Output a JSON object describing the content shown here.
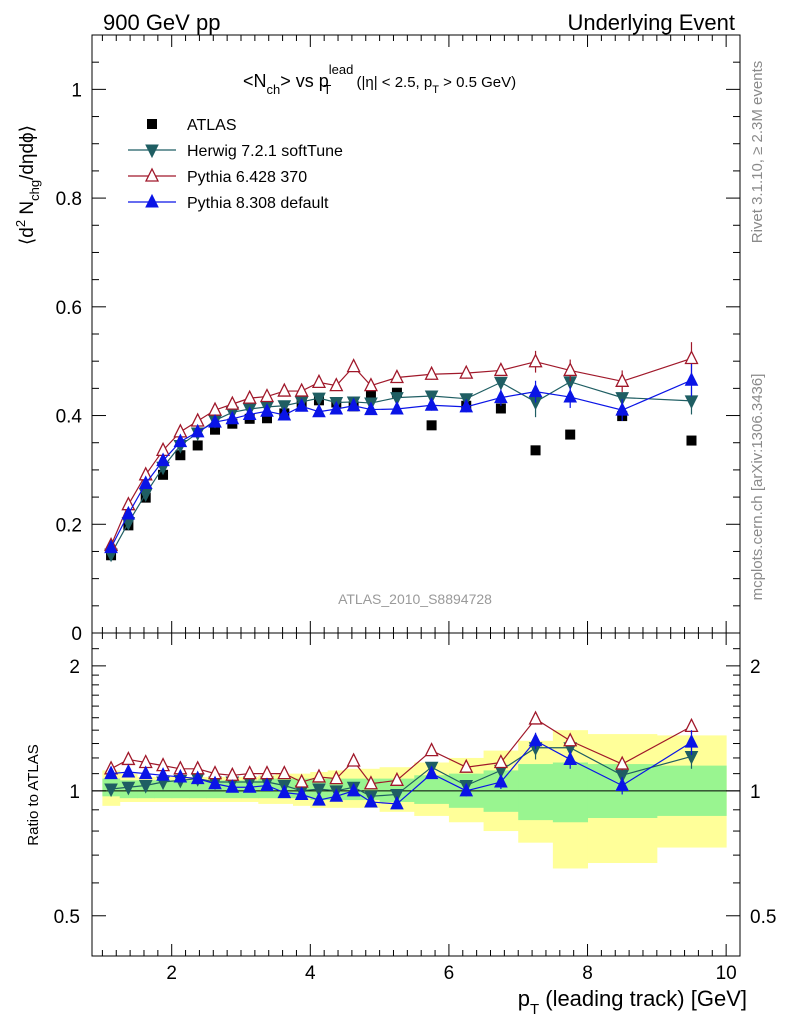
{
  "header": {
    "left": "900 GeV pp",
    "right": "Underlying Event"
  },
  "side_labels": {
    "top": "Rivet 3.1.10, ≥ 2.3M events",
    "bottom": "mcplots.cern.ch [arXiv:1306.3436]"
  },
  "watermark": "ATLAS_2010_S8894728",
  "colors": {
    "atlas": "#000000",
    "herwig": "#1f5e63",
    "pythia6": "#a0182a",
    "pythia8": "#0a14e6",
    "band_inner": "#99f590",
    "band_outer": "#ffff99"
  },
  "chart_data": [
    {
      "type": "scatter",
      "panel": "main",
      "title_parts": {
        "a": "<N",
        "a_sub": "ch",
        "b": "> vs p",
        "b_sup": "lead",
        "b_sub": "T",
        "c": " (|η| < 2.5, p",
        "c_sub": "T",
        "d": " > 0.5 GeV)"
      },
      "ylabel_parts": {
        "a": "⟨d",
        "a_sup": "2",
        "b": " N",
        "b_sub": "chg",
        "c": "/dηdϕ⟩"
      },
      "xlim": [
        0.85,
        10.2
      ],
      "ylim": [
        0,
        1.1
      ],
      "yticks": [
        0,
        0.2,
        0.4,
        0.6,
        0.8,
        1
      ],
      "ytick_labels": [
        "0",
        "0.2",
        "0.4",
        "0.6",
        "0.8",
        "1"
      ],
      "legend_position": "top-left",
      "x": [
        1.125,
        1.375,
        1.625,
        1.875,
        2.125,
        2.375,
        2.625,
        2.875,
        3.125,
        3.375,
        3.625,
        3.875,
        4.125,
        4.375,
        4.625,
        4.875,
        5.25,
        5.75,
        6.25,
        6.75,
        7.25,
        7.75,
        8.5,
        9.5
      ],
      "series": [
        {
          "name": "ATLAS",
          "marker": "square",
          "values": [
            0.143,
            0.198,
            0.249,
            0.291,
            0.327,
            0.345,
            0.374,
            0.385,
            0.394,
            0.395,
            0.404,
            0.424,
            0.428,
            0.424,
            0.417,
            0.437,
            0.442,
            0.382,
            0.418,
            0.413,
            0.336,
            0.365,
            0.399,
            0.354
          ]
        },
        {
          "name": "Herwig 7.2.1 softTune",
          "marker": "triangle-down",
          "values": [
            0.145,
            0.203,
            0.256,
            0.305,
            0.345,
            0.368,
            0.391,
            0.406,
            0.412,
            0.416,
            0.418,
            0.425,
            0.432,
            0.424,
            0.425,
            0.423,
            0.433,
            0.436,
            0.431,
            0.461,
            0.425,
            0.462,
            0.433,
            0.427
          ],
          "errors": [
            0,
            0,
            0,
            0,
            0,
            0,
            0,
            0,
            0,
            0,
            0,
            0,
            0,
            0,
            0,
            0,
            0,
            0,
            0,
            0,
            0.028,
            0.01,
            0,
            0.025
          ]
        },
        {
          "name": "Pythia 6.428 370",
          "marker": "triangle-up-open",
          "values": [
            0.161,
            0.236,
            0.291,
            0.336,
            0.37,
            0.39,
            0.41,
            0.421,
            0.432,
            0.435,
            0.445,
            0.445,
            0.461,
            0.455,
            0.49,
            0.455,
            0.47,
            0.476,
            0.478,
            0.483,
            0.499,
            0.483,
            0.463,
            0.505
          ],
          "errors": [
            0,
            0,
            0,
            0,
            0,
            0,
            0,
            0,
            0,
            0,
            0,
            0,
            0,
            0,
            0,
            0,
            0,
            0.01,
            0.01,
            0.01,
            0.02,
            0.02,
            0.02,
            0.03
          ]
        },
        {
          "name": "Pythia 8.308 default",
          "marker": "triangle-up",
          "values": [
            0.157,
            0.219,
            0.275,
            0.317,
            0.352,
            0.37,
            0.388,
            0.394,
            0.402,
            0.408,
            0.401,
            0.417,
            0.407,
            0.412,
            0.418,
            0.411,
            0.412,
            0.419,
            0.416,
            0.433,
            0.444,
            0.434,
            0.41,
            0.465
          ],
          "errors": [
            0,
            0,
            0,
            0,
            0,
            0,
            0,
            0,
            0,
            0,
            0,
            0,
            0,
            0,
            0,
            0,
            0,
            0.01,
            0.01,
            0.015,
            0.02,
            0.02,
            0.02,
            0.03
          ]
        }
      ]
    },
    {
      "type": "scatter",
      "panel": "ratio",
      "ylabel": "Ratio to ATLAS",
      "xlabel_parts": {
        "a": "p",
        "a_sub": "T",
        "b": " (leading track) [GeV]"
      },
      "xlim": [
        0.85,
        10.2
      ],
      "ylim": [
        0.4,
        2.4
      ],
      "log_y": true,
      "xticks": [
        2,
        4,
        6,
        8,
        10
      ],
      "xtick_labels": [
        "2",
        "4",
        "6",
        "8",
        "10"
      ],
      "yticks": [
        0.5,
        1,
        2
      ],
      "ytick_labels": [
        "0.5",
        "1",
        "2"
      ],
      "bins": [
        [
          1.0,
          1.25
        ],
        [
          1.25,
          1.5
        ],
        [
          1.5,
          1.75
        ],
        [
          1.75,
          2.0
        ],
        [
          2.0,
          2.25
        ],
        [
          2.25,
          2.5
        ],
        [
          2.5,
          2.75
        ],
        [
          2.75,
          3.0
        ],
        [
          3.0,
          3.25
        ],
        [
          3.25,
          3.5
        ],
        [
          3.5,
          3.75
        ],
        [
          3.75,
          4.0
        ],
        [
          4.0,
          4.25
        ],
        [
          4.25,
          4.5
        ],
        [
          4.5,
          4.75
        ],
        [
          4.75,
          5.0
        ],
        [
          5.0,
          5.5
        ],
        [
          5.5,
          6.0
        ],
        [
          6.0,
          6.5
        ],
        [
          6.5,
          7.0
        ],
        [
          7.0,
          7.5
        ],
        [
          7.5,
          8.0
        ],
        [
          8.0,
          9.0
        ],
        [
          9.0,
          10.0
        ]
      ],
      "band_inner": [
        [
          0.97,
          1.07
        ],
        [
          0.96,
          1.06
        ],
        [
          0.96,
          1.06
        ],
        [
          0.96,
          1.06
        ],
        [
          0.96,
          1.06
        ],
        [
          0.96,
          1.06
        ],
        [
          0.96,
          1.06
        ],
        [
          0.96,
          1.06
        ],
        [
          0.96,
          1.06
        ],
        [
          0.96,
          1.07
        ],
        [
          0.96,
          1.07
        ],
        [
          0.96,
          1.07
        ],
        [
          0.95,
          1.07
        ],
        [
          0.95,
          1.07
        ],
        [
          0.95,
          1.07
        ],
        [
          0.95,
          1.07
        ],
        [
          0.94,
          1.07
        ],
        [
          0.93,
          1.09
        ],
        [
          0.91,
          1.1
        ],
        [
          0.89,
          1.12
        ],
        [
          0.85,
          1.16
        ],
        [
          0.84,
          1.17
        ],
        [
          0.86,
          1.16
        ],
        [
          0.87,
          1.15
        ]
      ],
      "band_outer": [
        [
          0.92,
          1.12
        ],
        [
          0.94,
          1.1
        ],
        [
          0.94,
          1.08
        ],
        [
          0.94,
          1.08
        ],
        [
          0.94,
          1.08
        ],
        [
          0.94,
          1.08
        ],
        [
          0.94,
          1.08
        ],
        [
          0.94,
          1.08
        ],
        [
          0.94,
          1.08
        ],
        [
          0.93,
          1.09
        ],
        [
          0.93,
          1.1
        ],
        [
          0.92,
          1.1
        ],
        [
          0.91,
          1.11
        ],
        [
          0.91,
          1.12
        ],
        [
          0.91,
          1.13
        ],
        [
          0.91,
          1.13
        ],
        [
          0.89,
          1.14
        ],
        [
          0.87,
          1.17
        ],
        [
          0.84,
          1.2
        ],
        [
          0.8,
          1.25
        ],
        [
          0.75,
          1.32
        ],
        [
          0.65,
          1.4
        ],
        [
          0.67,
          1.37
        ],
        [
          0.73,
          1.36
        ]
      ],
      "series": [
        {
          "name": "Herwig 7.2.1 softTune",
          "values": [
            1.01,
            1.02,
            1.03,
            1.05,
            1.06,
            1.07,
            1.05,
            1.05,
            1.05,
            1.05,
            1.03,
            1.0,
            1.01,
            1.0,
            1.02,
            0.97,
            0.98,
            1.14,
            1.03,
            1.12,
            1.27,
            1.27,
            1.09,
            1.21
          ],
          "errors": [
            0,
            0,
            0,
            0,
            0,
            0,
            0,
            0,
            0,
            0,
            0,
            0,
            0,
            0,
            0,
            0,
            0,
            0.02,
            0.03,
            0.03,
            0.08,
            0.05,
            0.04,
            0.08
          ]
        },
        {
          "name": "Pythia 6.428 370",
          "values": [
            1.13,
            1.19,
            1.17,
            1.15,
            1.13,
            1.13,
            1.1,
            1.09,
            1.1,
            1.1,
            1.1,
            1.05,
            1.08,
            1.07,
            1.18,
            1.04,
            1.06,
            1.25,
            1.14,
            1.17,
            1.49,
            1.32,
            1.16,
            1.43
          ],
          "errors": [
            0,
            0,
            0,
            0,
            0,
            0,
            0,
            0,
            0,
            0,
            0,
            0,
            0,
            0,
            0,
            0,
            0,
            0.02,
            0.02,
            0.03,
            0.04,
            0.04,
            0.04,
            0.06
          ]
        },
        {
          "name": "Pythia 8.308 default",
          "values": [
            1.1,
            1.11,
            1.1,
            1.09,
            1.08,
            1.07,
            1.04,
            1.02,
            1.02,
            1.03,
            0.99,
            0.98,
            0.95,
            0.97,
            1.0,
            0.94,
            0.93,
            1.1,
            1.0,
            1.05,
            1.32,
            1.19,
            1.03,
            1.31
          ],
          "errors": [
            0,
            0,
            0,
            0,
            0,
            0,
            0,
            0,
            0,
            0,
            0,
            0,
            0,
            0,
            0,
            0,
            0,
            0.03,
            0.03,
            0.04,
            0.06,
            0.06,
            0.05,
            0.09
          ]
        }
      ]
    }
  ]
}
